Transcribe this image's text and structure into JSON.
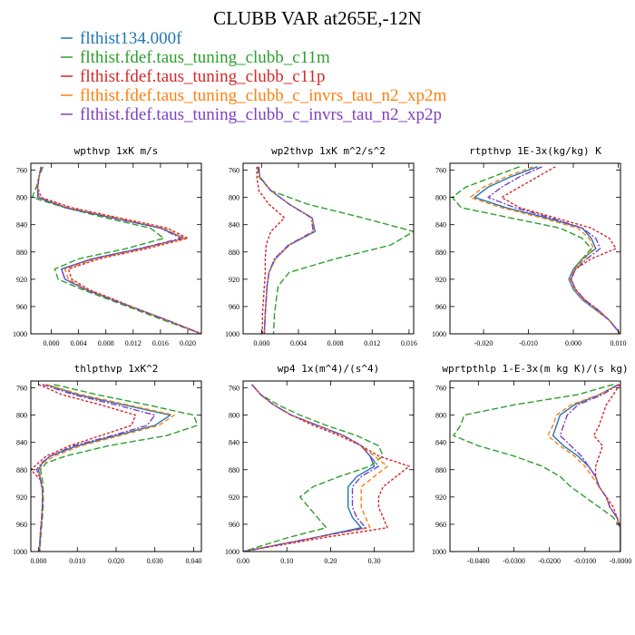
{
  "figure_title": "CLUBB VAR at265E,-12N",
  "legend": [
    {
      "label": "flthist134.000f",
      "color": "#1f77b4"
    },
    {
      "label": "flthist.fdef.taus_tuning_clubb_c11m",
      "color": "#2ca02c"
    },
    {
      "label": "flthist.fdef.taus_tuning_clubb_c11p",
      "color": "#d62728"
    },
    {
      "label": "flthist.fdef.taus_tuning_clubb_c_invrs_tau_n2_xp2m",
      "color": "#ff7f0e"
    },
    {
      "label": "flthist.fdef.taus_tuning_clubb_c_invrs_tau_n2_xp2p",
      "color": "#7f3fbf"
    }
  ],
  "chart_data": [
    {
      "type": "line",
      "title": "wpthvp  1xK m/s",
      "xlim": [
        -0.003,
        0.022
      ],
      "xticks": [
        0.0,
        0.004,
        0.008,
        0.012,
        0.016,
        0.02
      ],
      "xtick_labels": [
        "0.000",
        "0.004",
        "0.008",
        "0.012",
        "0.016",
        "0.020"
      ],
      "ylim": [
        750,
        1000
      ],
      "yticks": [
        760,
        800,
        840,
        880,
        920,
        960,
        1000
      ],
      "ytick_labels": [
        "760",
        "800",
        "840",
        "880",
        "920",
        "960",
        "1000"
      ],
      "y": [
        755,
        770,
        785,
        800,
        815,
        830,
        845,
        860,
        875,
        890,
        905,
        920,
        935,
        950,
        965,
        980,
        1000
      ],
      "series": [
        {
          "values": [
            -0.0015,
            -0.0018,
            -0.002,
            -0.002,
            0.002,
            0.009,
            0.016,
            0.0195,
            0.013,
            0.006,
            0.0015,
            0.002,
            0.005,
            0.009,
            0.013,
            0.017,
            0.022
          ]
        },
        {
          "values": [
            -0.0012,
            -0.0018,
            -0.0022,
            -0.0028,
            0.002,
            0.008,
            0.0145,
            0.0165,
            0.011,
            0.004,
            0.0005,
            0.001,
            0.0045,
            0.0085,
            0.0125,
            0.0165,
            0.022
          ]
        },
        {
          "values": [
            -0.0015,
            -0.0018,
            -0.002,
            -0.0015,
            0.003,
            0.01,
            0.017,
            0.02,
            0.014,
            0.007,
            0.0025,
            0.003,
            0.0055,
            0.0093,
            0.013,
            0.017,
            0.022
          ]
        },
        {
          "values": [
            -0.0015,
            -0.0018,
            -0.002,
            -0.0018,
            0.0025,
            0.0095,
            0.0165,
            0.0195,
            0.0135,
            0.0065,
            0.002,
            0.0025,
            0.0052,
            0.009,
            0.013,
            0.017,
            0.022
          ]
        },
        {
          "values": [
            -0.0015,
            -0.0018,
            -0.002,
            -0.0019,
            0.0022,
            0.009,
            0.016,
            0.019,
            0.013,
            0.006,
            0.0015,
            0.002,
            0.005,
            0.009,
            0.013,
            0.017,
            0.022
          ]
        }
      ]
    },
    {
      "type": "line",
      "title": "wp2thvp  1xK m^2/s^2",
      "xlim": [
        -0.002,
        0.0165
      ],
      "xticks": [
        0.0,
        0.004,
        0.008,
        0.012,
        0.016
      ],
      "xtick_labels": [
        "0.000",
        "0.004",
        "0.008",
        "0.012",
        "0.016"
      ],
      "ylim": [
        750,
        1000
      ],
      "yticks": [
        760,
        800,
        840,
        880,
        920,
        960,
        1000
      ],
      "ytick_labels": [
        "760",
        "800",
        "840",
        "880",
        "920",
        "960",
        "1000"
      ],
      "y": [
        755,
        770,
        790,
        810,
        830,
        850,
        870,
        890,
        910,
        930,
        950,
        970,
        1000
      ],
      "series": [
        {
          "values": [
            -0.0003,
            -0.0002,
            0.001,
            0.003,
            0.0055,
            0.0058,
            0.003,
            0.0015,
            0.0008,
            0.0006,
            0.0005,
            0.0004,
            0.0003
          ]
        },
        {
          "values": [
            -0.0004,
            -0.0003,
            0.001,
            0.005,
            0.011,
            0.0165,
            0.014,
            0.008,
            0.003,
            0.0018,
            0.0016,
            0.0014,
            0.0013
          ]
        },
        {
          "values": [
            -0.0005,
            -0.0005,
            -0.0003,
            0.0008,
            0.0025,
            0.001,
            0.0005,
            0.0004,
            0.0004,
            0.0003,
            0.0002,
            0.0001,
            0.0001
          ]
        },
        {
          "values": [
            -0.0003,
            -0.0002,
            0.001,
            0.003,
            0.0055,
            0.0057,
            0.003,
            0.0015,
            0.0008,
            0.0006,
            0.0005,
            0.0004,
            0.0003
          ]
        },
        {
          "values": [
            -0.0003,
            -0.0002,
            0.001,
            0.003,
            0.0054,
            0.0056,
            0.0029,
            0.0014,
            0.0008,
            0.0006,
            0.0005,
            0.0004,
            0.0003
          ]
        }
      ]
    },
    {
      "type": "line",
      "title": "rtpthvp  1E-3x(kg/kg) K",
      "xlim": [
        -0.0275,
        0.0105
      ],
      "xticks": [
        -0.02,
        -0.01,
        0.0,
        0.01
      ],
      "xtick_labels": [
        "-0.020",
        "-0.010",
        "0.000",
        "0.010"
      ],
      "ylim": [
        750,
        1000
      ],
      "yticks": [
        760,
        800,
        840,
        880,
        920,
        960,
        1000
      ],
      "ytick_labels": [
        "760",
        "800",
        "840",
        "880",
        "920",
        "960",
        "1000"
      ],
      "y": [
        755,
        770,
        785,
        800,
        815,
        830,
        845,
        860,
        875,
        890,
        905,
        920,
        935,
        950,
        965,
        980,
        1000
      ],
      "series": [
        {
          "values": [
            -0.008,
            -0.014,
            -0.019,
            -0.022,
            -0.015,
            -0.006,
            0.002,
            0.004,
            0.005,
            0.002,
            0.0,
            -0.001,
            0.0,
            0.002,
            0.005,
            0.008,
            0.0105
          ]
        },
        {
          "values": [
            -0.012,
            -0.018,
            -0.024,
            -0.027,
            -0.025,
            -0.014,
            -0.003,
            0.002,
            0.004,
            0.002,
            0.0,
            -0.0005,
            0.0005,
            0.0025,
            0.0055,
            0.008,
            0.0105
          ]
        },
        {
          "values": [
            -0.004,
            -0.008,
            -0.012,
            -0.016,
            -0.012,
            -0.004,
            0.004,
            0.008,
            0.0095,
            0.004,
            0.0005,
            -0.0005,
            0.0005,
            0.0025,
            0.0055,
            0.008,
            0.0105
          ]
        },
        {
          "values": [
            -0.009,
            -0.015,
            -0.02,
            -0.023,
            -0.016,
            -0.007,
            0.001,
            0.0035,
            0.0045,
            0.0025,
            0.0003,
            -0.0008,
            0.0002,
            0.0022,
            0.0052,
            0.008,
            0.0105
          ]
        },
        {
          "values": [
            -0.007,
            -0.012,
            -0.016,
            -0.019,
            -0.013,
            -0.005,
            0.002,
            0.005,
            0.006,
            0.003,
            0.0005,
            -0.0005,
            0.0005,
            0.0025,
            0.0055,
            0.008,
            0.0105
          ]
        }
      ]
    },
    {
      "type": "line",
      "title": "thlpthvp  1xK^2",
      "xlim": [
        -0.002,
        0.042
      ],
      "xticks": [
        0.0,
        0.01,
        0.02,
        0.03,
        0.04
      ],
      "xtick_labels": [
        "0.000",
        "0.010",
        "0.020",
        "0.030",
        "0.040"
      ],
      "ylim": [
        750,
        1000
      ],
      "yticks": [
        760,
        800,
        840,
        880,
        920,
        960,
        1000
      ],
      "ytick_labels": [
        "760",
        "800",
        "840",
        "880",
        "920",
        "960",
        "1000"
      ],
      "y": [
        755,
        770,
        785,
        800,
        815,
        830,
        845,
        860,
        870,
        880,
        895,
        910,
        930,
        950,
        970,
        990,
        1000
      ],
      "series": [
        {
          "values": [
            0.002,
            0.01,
            0.022,
            0.034,
            0.03,
            0.02,
            0.01,
            0.003,
            0.001,
            0.0,
            0.0005,
            0.001,
            0.001,
            0.0008,
            0.0005,
            0.0003,
            0.0003
          ]
        },
        {
          "values": [
            0.004,
            0.015,
            0.028,
            0.04,
            0.041,
            0.033,
            0.018,
            0.007,
            0.002,
            0.0005,
            0.001,
            0.0012,
            0.0012,
            0.001,
            0.0007,
            0.0004,
            0.0003
          ]
        },
        {
          "values": [
            0.0,
            0.006,
            0.016,
            0.025,
            0.024,
            0.016,
            0.008,
            0.002,
            0.0,
            -0.002,
            0.0005,
            0.001,
            0.001,
            0.0008,
            0.0005,
            0.0003,
            0.0003
          ]
        },
        {
          "values": [
            0.002,
            0.011,
            0.023,
            0.035,
            0.031,
            0.021,
            0.011,
            0.004,
            0.0012,
            0.0002,
            0.0006,
            0.001,
            0.001,
            0.0008,
            0.0005,
            0.0003,
            0.0003
          ]
        },
        {
          "values": [
            0.001,
            0.009,
            0.02,
            0.03,
            0.028,
            0.019,
            0.009,
            0.003,
            0.0008,
            -0.0005,
            0.0005,
            0.001,
            0.001,
            0.0008,
            0.0005,
            0.0003,
            0.0003
          ]
        }
      ]
    },
    {
      "type": "line",
      "title": "wp4  1x(m^4)/(s^4)",
      "xlim": [
        0.0,
        0.39
      ],
      "xticks": [
        0.0,
        0.1,
        0.2,
        0.3
      ],
      "xtick_labels": [
        "0.00",
        "0.10",
        "0.20",
        "0.30"
      ],
      "ylim": [
        750,
        1000
      ],
      "yticks": [
        760,
        800,
        840,
        880,
        920,
        960,
        1000
      ],
      "ytick_labels": [
        "760",
        "800",
        "840",
        "880",
        "920",
        "960",
        "1000"
      ],
      "y": [
        755,
        770,
        785,
        800,
        815,
        830,
        845,
        860,
        875,
        890,
        905,
        920,
        935,
        950,
        965,
        980,
        1000
      ],
      "series": [
        {
          "values": [
            0.02,
            0.04,
            0.07,
            0.11,
            0.17,
            0.23,
            0.27,
            0.29,
            0.3,
            0.26,
            0.24,
            0.24,
            0.24,
            0.25,
            0.27,
            0.16,
            0.0
          ]
        },
        {
          "values": [
            0.02,
            0.04,
            0.08,
            0.13,
            0.19,
            0.26,
            0.31,
            0.32,
            0.29,
            0.22,
            0.16,
            0.13,
            0.15,
            0.17,
            0.19,
            0.1,
            0.0
          ]
        },
        {
          "values": [
            0.02,
            0.04,
            0.07,
            0.11,
            0.16,
            0.22,
            0.27,
            0.31,
            0.38,
            0.35,
            0.32,
            0.31,
            0.31,
            0.32,
            0.33,
            0.18,
            0.0
          ]
        },
        {
          "values": [
            0.02,
            0.04,
            0.07,
            0.11,
            0.17,
            0.23,
            0.27,
            0.3,
            0.33,
            0.3,
            0.27,
            0.27,
            0.27,
            0.28,
            0.29,
            0.16,
            0.0
          ]
        },
        {
          "values": [
            0.02,
            0.04,
            0.07,
            0.11,
            0.17,
            0.23,
            0.27,
            0.29,
            0.31,
            0.27,
            0.25,
            0.25,
            0.25,
            0.26,
            0.28,
            0.16,
            0.0
          ]
        }
      ]
    },
    {
      "type": "line",
      "title": "wprtpthlp  1-E-3x(m kg K)/(s kg)",
      "xlim": [
        -0.048,
        0.0
      ],
      "xticks": [
        -0.04,
        -0.03,
        -0.02,
        -0.01,
        0.0
      ],
      "xtick_labels": [
        "-0.0400",
        "-0.0300",
        "-0.0200",
        "-0.0100",
        "-0.0000"
      ],
      "ylim": [
        750,
        1000
      ],
      "yticks": [
        760,
        800,
        840,
        880,
        920,
        960,
        1000
      ],
      "ytick_labels": [
        "760",
        "800",
        "840",
        "880",
        "920",
        "960",
        "1000"
      ],
      "y": [
        755,
        770,
        785,
        800,
        815,
        830,
        845,
        860,
        875,
        890,
        905,
        920,
        935,
        950,
        965,
        980,
        1000
      ],
      "series": [
        {
          "values": [
            -0.0005,
            -0.006,
            -0.013,
            -0.017,
            -0.018,
            -0.019,
            -0.016,
            -0.012,
            -0.009,
            -0.007,
            -0.006,
            -0.004,
            -0.003,
            -0.001,
            0.0,
            0.0,
            0.0
          ]
        },
        {
          "values": [
            -0.002,
            -0.012,
            -0.03,
            -0.044,
            -0.045,
            -0.047,
            -0.04,
            -0.03,
            -0.022,
            -0.017,
            -0.014,
            -0.01,
            -0.006,
            -0.002,
            0.0,
            0.0,
            0.0
          ]
        },
        {
          "values": [
            -0.0002,
            -0.002,
            -0.004,
            -0.005,
            -0.006,
            -0.0075,
            -0.005,
            -0.006,
            -0.007,
            -0.007,
            -0.006,
            -0.004,
            -0.002,
            -0.001,
            0.0,
            0.0,
            0.0
          ]
        },
        {
          "values": [
            -0.0005,
            -0.006,
            -0.014,
            -0.018,
            -0.019,
            -0.0205,
            -0.017,
            -0.013,
            -0.01,
            -0.008,
            -0.006,
            -0.004,
            -0.003,
            -0.001,
            0.0,
            0.0,
            0.0
          ]
        },
        {
          "values": [
            -0.0005,
            -0.005,
            -0.012,
            -0.015,
            -0.016,
            -0.017,
            -0.014,
            -0.011,
            -0.009,
            -0.007,
            -0.006,
            -0.004,
            -0.003,
            -0.001,
            0.0,
            0.0,
            0.0
          ]
        }
      ]
    }
  ]
}
